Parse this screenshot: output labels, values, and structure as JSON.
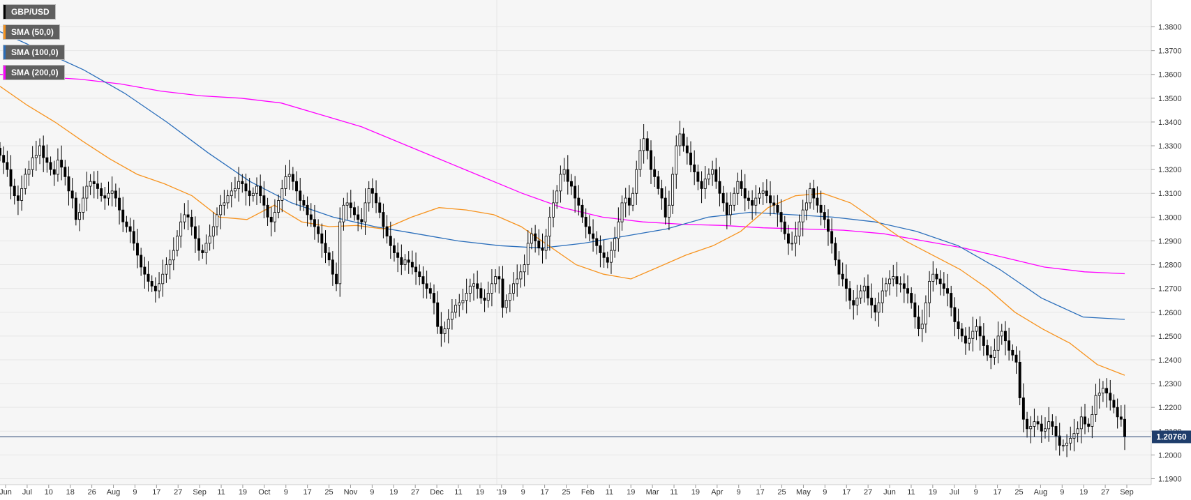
{
  "chart_data": {
    "type": "candlestick",
    "symbol": "GBP/USD",
    "legend": [
      {
        "label": "GBP/USD",
        "color": "#000000"
      },
      {
        "label": "SMA (50,0)",
        "color": "#f7931e"
      },
      {
        "label": "SMA (100,0)",
        "color": "#2a6ebb"
      },
      {
        "label": "SMA (200,0)",
        "color": "#ff00ff"
      }
    ],
    "ylim": [
      1.1875,
      1.3913
    ],
    "y_ticks": [
      "1.1900",
      "1.2000",
      "1.2100",
      "1.2200",
      "1.2300",
      "1.2400",
      "1.2500",
      "1.2600",
      "1.2700",
      "1.2800",
      "1.2900",
      "1.3000",
      "1.3100",
      "1.3200",
      "1.3300",
      "1.3400",
      "1.3500",
      "1.3600",
      "1.3700",
      "1.3800"
    ],
    "x_ticks": [
      "Jun",
      "Jul",
      "10",
      "18",
      "26",
      "Aug",
      "9",
      "17",
      "27",
      "Sep",
      "11",
      "19",
      "Oct",
      "9",
      "17",
      "25",
      "Nov",
      "9",
      "19",
      "27",
      "Dec",
      "11",
      "19",
      "'19",
      "9",
      "17",
      "25",
      "Feb",
      "11",
      "19",
      "Mar",
      "11",
      "19",
      "Apr",
      "9",
      "17",
      "25",
      "May",
      "9",
      "17",
      "27",
      "Jun",
      "11",
      "19",
      "Jul",
      "9",
      "17",
      "25",
      "Aug",
      "9",
      "19",
      "27",
      "Sep"
    ],
    "last_price": "1.20760",
    "last_value": 1.2076,
    "grid": true,
    "colors": {
      "up": "#ffffff",
      "down": "#000000",
      "grid": "#e6e6e6",
      "badge": "#1f3d6b"
    },
    "sma50": [
      1.355,
      1.347,
      1.34,
      1.332,
      1.3245,
      1.318,
      1.314,
      1.309,
      1.3,
      1.299,
      1.305,
      1.298,
      1.296,
      1.2965,
      1.295,
      1.3,
      1.304,
      1.303,
      1.301,
      1.296,
      1.288,
      1.28,
      1.276,
      1.274,
      1.279,
      1.284,
      1.288,
      1.294,
      1.304,
      1.309,
      1.31,
      1.306,
      1.298,
      1.29,
      1.284,
      1.278,
      1.27,
      1.26,
      1.253,
      1.247,
      1.238,
      1.2335
    ],
    "sma100": [
      1.378,
      1.37,
      1.362,
      1.352,
      1.34,
      1.327,
      1.315,
      1.306,
      1.3,
      1.296,
      1.293,
      1.29,
      1.288,
      1.287,
      1.289,
      1.292,
      1.295,
      1.3,
      1.302,
      1.301,
      1.3,
      1.298,
      1.294,
      1.288,
      1.278,
      1.266,
      1.258,
      1.257
    ],
    "sma200": [
      1.36,
      1.359,
      1.358,
      1.356,
      1.353,
      1.351,
      1.35,
      1.348,
      1.343,
      1.338,
      1.331,
      1.324,
      1.317,
      1.31,
      1.304,
      1.3,
      1.298,
      1.297,
      1.2965,
      1.2955,
      1.295,
      1.2945,
      1.293,
      1.29,
      1.287,
      1.283,
      1.279,
      1.277,
      1.2762
    ],
    "candles": [
      1.326,
      1.323,
      1.32,
      1.313,
      1.309,
      1.307,
      1.312,
      1.318,
      1.32,
      1.325,
      1.326,
      1.33,
      1.325,
      1.323,
      1.32,
      1.318,
      1.324,
      1.321,
      1.317,
      1.311,
      1.308,
      1.299,
      1.302,
      1.308,
      1.313,
      1.315,
      1.314,
      1.312,
      1.309,
      1.308,
      1.31,
      1.311,
      1.308,
      1.303,
      1.298,
      1.296,
      1.294,
      1.289,
      1.284,
      1.279,
      1.276,
      1.273,
      1.271,
      1.269,
      1.272,
      1.276,
      1.28,
      1.282,
      1.286,
      1.292,
      1.298,
      1.301,
      1.3,
      1.296,
      1.291,
      1.286,
      1.285,
      1.289,
      1.292,
      1.296,
      1.301,
      1.305,
      1.306,
      1.309,
      1.311,
      1.312,
      1.315,
      1.314,
      1.311,
      1.309,
      1.31,
      1.313,
      1.309,
      1.305,
      1.3,
      1.298,
      1.302,
      1.307,
      1.312,
      1.317,
      1.318,
      1.315,
      1.311,
      1.307,
      1.305,
      1.301,
      1.299,
      1.296,
      1.293,
      1.289,
      1.285,
      1.282,
      1.276,
      1.272,
      1.298,
      1.305,
      1.306,
      1.304,
      1.301,
      1.299,
      1.298,
      1.306,
      1.312,
      1.31,
      1.306,
      1.302,
      1.296,
      1.292,
      1.288,
      1.285,
      1.283,
      1.28,
      1.282,
      1.281,
      1.279,
      1.277,
      1.275,
      1.272,
      1.27,
      1.268,
      1.264,
      1.254,
      1.251,
      1.253,
      1.257,
      1.26,
      1.263,
      1.264,
      1.265,
      1.268,
      1.271,
      1.272,
      1.27,
      1.266,
      1.265,
      1.268,
      1.272,
      1.275,
      1.274,
      1.262,
      1.265,
      1.268,
      1.272,
      1.274,
      1.277,
      1.28,
      1.289,
      1.293,
      1.29,
      1.287,
      1.286,
      1.292,
      1.3,
      1.306,
      1.311,
      1.318,
      1.32,
      1.315,
      1.313,
      1.308,
      1.305,
      1.3,
      1.296,
      1.293,
      1.291,
      1.288,
      1.285,
      1.283,
      1.281,
      1.286,
      1.291,
      1.298,
      1.306,
      1.308,
      1.305,
      1.31,
      1.32,
      1.328,
      1.333,
      1.328,
      1.32,
      1.317,
      1.312,
      1.308,
      1.3,
      1.305,
      1.318,
      1.33,
      1.335,
      1.33,
      1.327,
      1.322,
      1.319,
      1.315,
      1.312,
      1.316,
      1.318,
      1.32,
      1.315,
      1.31,
      1.306,
      1.301,
      1.305,
      1.31,
      1.315,
      1.312,
      1.308,
      1.307,
      1.305,
      1.308,
      1.31,
      1.311,
      1.309,
      1.306,
      1.305,
      1.302,
      1.298,
      1.293,
      1.289,
      1.289,
      1.292,
      1.298,
      1.303,
      1.306,
      1.312,
      1.308,
      1.305,
      1.302,
      1.299,
      1.294,
      1.289,
      1.282,
      1.276,
      1.274,
      1.27,
      1.265,
      1.263,
      1.266,
      1.269,
      1.271,
      1.266,
      1.263,
      1.26,
      1.264,
      1.269,
      1.272,
      1.274,
      1.275,
      1.272,
      1.272,
      1.27,
      1.268,
      1.264,
      1.258,
      1.253,
      1.255,
      1.264,
      1.273,
      1.276,
      1.274,
      1.272,
      1.27,
      1.268,
      1.262,
      1.256,
      1.253,
      1.25,
      1.247,
      1.249,
      1.252,
      1.254,
      1.25,
      1.246,
      1.242,
      1.241,
      1.244,
      1.25,
      1.252,
      1.248,
      1.244,
      1.242,
      1.239,
      1.224,
      1.215,
      1.211,
      1.212,
      1.214,
      1.213,
      1.21,
      1.211,
      1.214,
      1.212,
      1.208,
      1.204,
      1.204,
      1.205,
      1.207,
      1.209,
      1.211,
      1.216,
      1.213,
      1.212,
      1.217,
      1.225,
      1.226,
      1.228,
      1.226,
      1.223,
      1.22,
      1.216,
      1.215,
      1.2076
    ]
  }
}
